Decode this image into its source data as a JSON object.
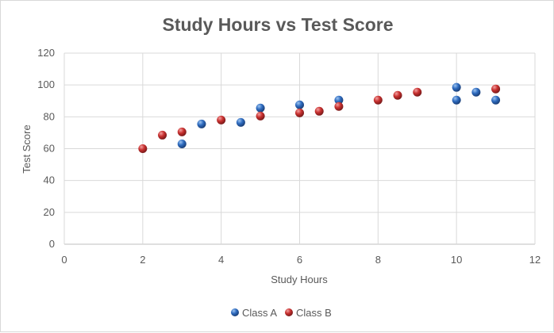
{
  "chart_data": {
    "type": "scatter",
    "title": "Study Hours vs Test Score",
    "xlabel": "Study Hours",
    "ylabel": "Test Score",
    "xlim": [
      0,
      12
    ],
    "ylim": [
      0,
      120
    ],
    "xticks": [
      0,
      2,
      4,
      6,
      8,
      10,
      12
    ],
    "yticks": [
      0,
      20,
      40,
      60,
      80,
      100,
      120
    ],
    "grid": true,
    "legend_position": "bottom",
    "series": [
      {
        "name": "Class A",
        "color": "#2e6bbf",
        "points": [
          [
            3,
            63
          ],
          [
            3.5,
            75.5
          ],
          [
            4.5,
            76.5
          ],
          [
            5,
            85.5
          ],
          [
            6,
            87.5
          ],
          [
            7,
            90.5
          ],
          [
            10,
            98.5
          ],
          [
            10,
            90.5
          ],
          [
            10.5,
            95.5
          ],
          [
            11,
            90.5
          ]
        ]
      },
      {
        "name": "Class B",
        "color": "#c8302f",
        "points": [
          [
            2,
            60
          ],
          [
            2.5,
            68.5
          ],
          [
            3,
            70.5
          ],
          [
            4,
            78
          ],
          [
            5,
            80.5
          ],
          [
            6,
            82.5
          ],
          [
            6.5,
            83.5
          ],
          [
            7,
            86.5
          ],
          [
            8,
            90.5
          ],
          [
            8.5,
            93.5
          ],
          [
            9,
            95.5
          ],
          [
            11,
            97.5
          ]
        ]
      }
    ]
  }
}
